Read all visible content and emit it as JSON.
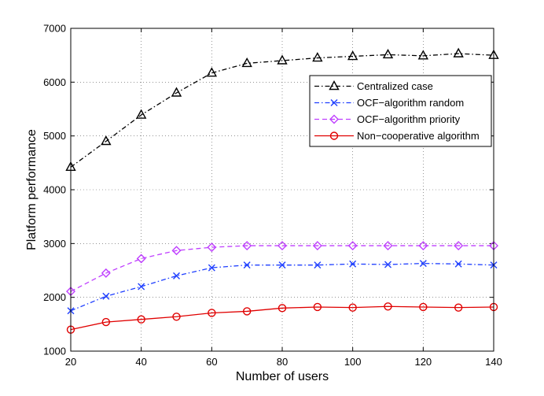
{
  "chart_data": {
    "type": "line",
    "title": "",
    "xlabel": "Number of users",
    "ylabel": "Platform performance",
    "xlim": [
      20,
      140
    ],
    "ylim": [
      1000,
      7000
    ],
    "xticks": [
      20,
      40,
      60,
      80,
      100,
      120,
      140
    ],
    "yticks": [
      1000,
      2000,
      3000,
      4000,
      5000,
      6000,
      7000
    ],
    "grid": true,
    "legend_position": "upper-right",
    "x": [
      20,
      30,
      40,
      50,
      60,
      70,
      80,
      90,
      100,
      110,
      120,
      130,
      140
    ],
    "series": [
      {
        "name": "Centralized case",
        "color": "#000000",
        "marker": "triangle",
        "linestyle": "dashdot",
        "values": [
          4420,
          4900,
          5390,
          5800,
          6170,
          6350,
          6400,
          6450,
          6480,
          6510,
          6490,
          6530,
          6500
        ]
      },
      {
        "name": "OCF−algorithm random",
        "color": "#1f3fff",
        "marker": "x",
        "linestyle": "dashdot",
        "values": [
          1750,
          2020,
          2200,
          2400,
          2550,
          2600,
          2600,
          2600,
          2620,
          2610,
          2630,
          2620,
          2600
        ]
      },
      {
        "name": "OCF−algorithm priority",
        "color": "#bf3fff",
        "marker": "diamond",
        "linestyle": "dashed",
        "values": [
          2110,
          2450,
          2720,
          2870,
          2930,
          2960,
          2960,
          2960,
          2960,
          2960,
          2960,
          2960,
          2960
        ]
      },
      {
        "name": "Non−cooperative algorithm",
        "color": "#e00000",
        "marker": "circle",
        "linestyle": "solid",
        "values": [
          1400,
          1540,
          1590,
          1640,
          1710,
          1740,
          1800,
          1820,
          1810,
          1830,
          1820,
          1810,
          1820
        ]
      }
    ]
  }
}
